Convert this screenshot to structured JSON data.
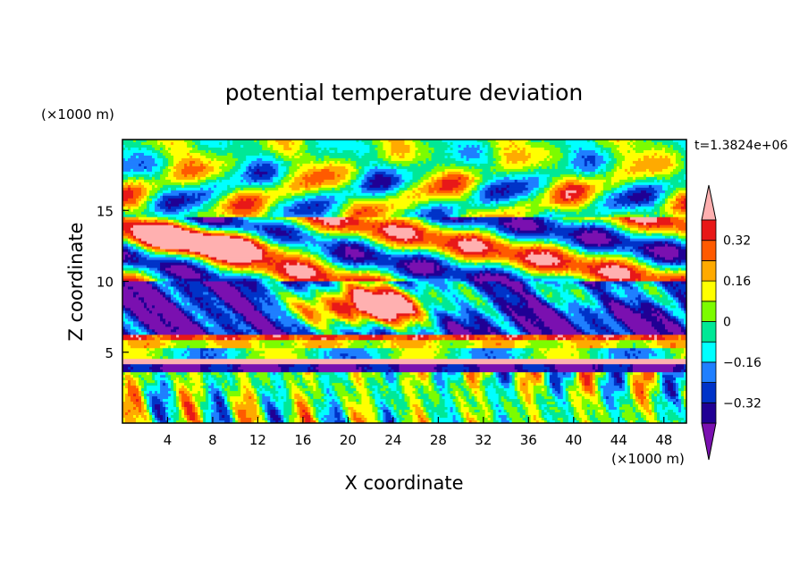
{
  "chart_data": {
    "type": "heatmap",
    "title": "potential temperature deviation",
    "xlabel": "X coordinate",
    "ylabel": "Z coordinate",
    "x_unit_label": "(×1000 m)",
    "y_unit_label": "(×1000 m)",
    "time_label": "t=1.3824e+06",
    "xlim": [
      0,
      50
    ],
    "ylim": [
      0,
      20
    ],
    "x_ticks": [
      4,
      8,
      12,
      16,
      20,
      24,
      28,
      32,
      36,
      40,
      44,
      48
    ],
    "y_ticks": [
      5,
      10,
      15
    ],
    "colorbar": {
      "levels": [
        -0.4,
        -0.32,
        -0.24,
        -0.16,
        -0.08,
        0,
        0.08,
        0.16,
        0.24,
        0.32,
        0.4
      ],
      "labeled_levels": [
        0.32,
        0.16,
        0,
        -0.16,
        -0.32
      ],
      "labels": [
        "0.32",
        "0.16",
        "0",
        "−0.16",
        "−0.32"
      ],
      "colors_low_to_high": [
        "#7a10b0",
        "#200094",
        "#0033c8",
        "#1f7fff",
        "#00ffff",
        "#00e896",
        "#7cfc00",
        "#ffff00",
        "#ffaa00",
        "#ff5a00",
        "#e81818",
        "#ffb0b0"
      ],
      "extends": "both"
    },
    "bands": [
      {
        "z_range": [
          15,
          20
        ],
        "pattern": "upper green-cyan field with tilted blue-purple and red-pink streaks"
      },
      {
        "z_range": [
          10,
          15
        ],
        "pattern": "tilted alternating purple, red, pink streaks"
      },
      {
        "z_range": [
          6,
          10
        ],
        "pattern": "broad purple band with large pink anomaly near x=16-30"
      },
      {
        "z_range": [
          4,
          6
        ],
        "pattern": "thin horizontal red/yellow/purple layers"
      },
      {
        "z_range": [
          0,
          4
        ],
        "pattern": "vertical cyan/red/blue columnar waves"
      }
    ]
  }
}
